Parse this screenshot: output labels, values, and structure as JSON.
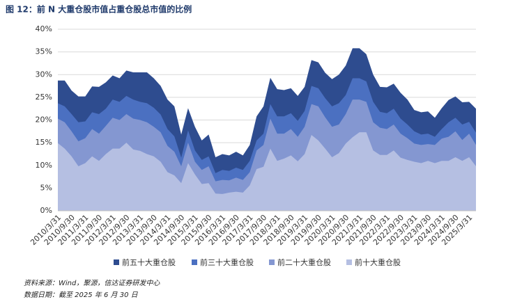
{
  "chart_data": {
    "type": "area",
    "title": "图 12：前 N 大重仓股市值占重仓股总市值的比例",
    "categories": [
      "2010/3/31",
      null,
      "2010/9/30",
      null,
      "2011/3/31",
      null,
      "2011/9/30",
      null,
      "2012/3/31",
      null,
      "2012/9/30",
      null,
      "2013/3/31",
      null,
      "2013/9/30",
      null,
      "2014/3/31",
      null,
      "2014/9/30",
      null,
      "2015/3/31",
      null,
      "2015/9/30",
      null,
      "2016/3/31",
      null,
      "2016/9/30",
      null,
      "2017/3/31",
      null,
      "2017/9/30",
      null,
      "2018/3/31",
      null,
      "2018/9/30",
      null,
      "2019/3/31",
      null,
      "2019/9/30",
      null,
      "2020/3/31",
      null,
      "2020/9/30",
      null,
      "2021/3/31",
      null,
      "2021/9/30",
      null,
      "2022/3/31",
      null,
      "2022/9/30",
      null,
      "2023/3/31",
      null,
      "2023/9/30",
      null,
      "2024/3/31",
      null,
      "2024/9/30",
      null,
      "2025/3/31",
      null
    ],
    "series": [
      {
        "name": "前五十大重仓股",
        "color": "#2e4c8f",
        "values": [
          28.7,
          28.7,
          26.5,
          25.2,
          25.2,
          27.4,
          27.3,
          28.3,
          29.8,
          29.2,
          30.9,
          30.5,
          30.5,
          30.5,
          29.2,
          27.5,
          24.5,
          23,
          16.8,
          22.6,
          18.5,
          15.5,
          16.8,
          11.8,
          12.5,
          12.2,
          13,
          12.2,
          14.5,
          20.8,
          23,
          29.3,
          26.8,
          26.6,
          27,
          25.3,
          27.3,
          33.2,
          32.7,
          30.4,
          29,
          30,
          32,
          35.8,
          35.8,
          34.5,
          30,
          27.3,
          27.2,
          28,
          26,
          24.5,
          22.2,
          21.7,
          21.9,
          20.5,
          22.6,
          24.4,
          25.2,
          23.9,
          24,
          22.5
        ]
      },
      {
        "name": "前三十大重仓股",
        "color": "#4b70c1",
        "values": [
          23.7,
          23,
          21.3,
          19.5,
          19.7,
          21.7,
          21.3,
          22.5,
          24.5,
          24,
          25.3,
          24.5,
          24,
          23.7,
          22.7,
          21.2,
          18,
          16.4,
          11.7,
          17.7,
          13.3,
          11.2,
          12,
          8.3,
          9,
          8.8,
          9.5,
          9,
          11,
          15.5,
          17,
          23.5,
          20.8,
          20.8,
          21.5,
          19.8,
          22,
          27.5,
          27,
          24.8,
          23,
          23.7,
          25.5,
          29.2,
          29.2,
          28.5,
          24,
          21.8,
          21.5,
          22.5,
          20.3,
          19,
          17.5,
          16.8,
          17,
          16.3,
          18,
          19.5,
          20.5,
          19,
          19.6,
          17.2
        ]
      },
      {
        "name": "前二十大重仓股",
        "color": "#8497d1",
        "values": [
          20.3,
          19.5,
          17.5,
          15.3,
          16,
          18,
          17,
          18.7,
          20.5,
          20,
          21.3,
          20.3,
          20,
          19.5,
          18.5,
          17.3,
          14.3,
          13,
          9.8,
          15,
          10.8,
          9,
          9.8,
          6.5,
          6.8,
          6.7,
          7.3,
          6.8,
          8.5,
          13.3,
          14.5,
          20.3,
          17,
          17,
          18,
          16.3,
          18.5,
          23.5,
          23,
          20.6,
          18.5,
          19,
          21.3,
          24.5,
          24.5,
          24,
          19.5,
          18.3,
          18,
          19,
          17,
          16,
          14.8,
          14.5,
          14.7,
          14.5,
          15.9,
          16.3,
          17.5,
          15.6,
          17,
          14.5
        ]
      },
      {
        "name": "前十大重仓股",
        "color": "#b5bfe2",
        "values": [
          14.9,
          13.7,
          12,
          9.8,
          10.5,
          12,
          11,
          12.5,
          13.7,
          13.7,
          15,
          13.5,
          13.2,
          12.5,
          12,
          10.8,
          8.5,
          7.8,
          6.1,
          10.5,
          8,
          5.9,
          6.1,
          3.8,
          3.7,
          4,
          4.2,
          4,
          5.6,
          9.2,
          9.7,
          13.7,
          11,
          11.5,
          12.2,
          10.9,
          12.5,
          16.7,
          15.5,
          13.7,
          11.8,
          12.7,
          14.8,
          16.2,
          17.3,
          17.3,
          13.3,
          12.3,
          12.3,
          13.3,
          11.7,
          11.2,
          10.8,
          10.5,
          11,
          10.5,
          11,
          11,
          11.8,
          11,
          11.8,
          9.8
        ]
      }
    ],
    "ylim": [
      0,
      40
    ],
    "yticks": [
      {
        "value": 0,
        "label": "0%"
      },
      {
        "value": 5,
        "label": "5%"
      },
      {
        "value": 10,
        "label": "10%"
      },
      {
        "value": 15,
        "label": "15%"
      },
      {
        "value": 20,
        "label": "20%"
      },
      {
        "value": 25,
        "label": "25%"
      },
      {
        "value": 30,
        "label": "30%"
      },
      {
        "value": 35,
        "label": "35%"
      },
      {
        "value": 40,
        "label": "40%"
      }
    ],
    "grid": true
  },
  "footer": [
    "资料来源：Wind，聚源，信达证券研发中心",
    "数据日期：截至 2025 年 6 月 30 日"
  ]
}
